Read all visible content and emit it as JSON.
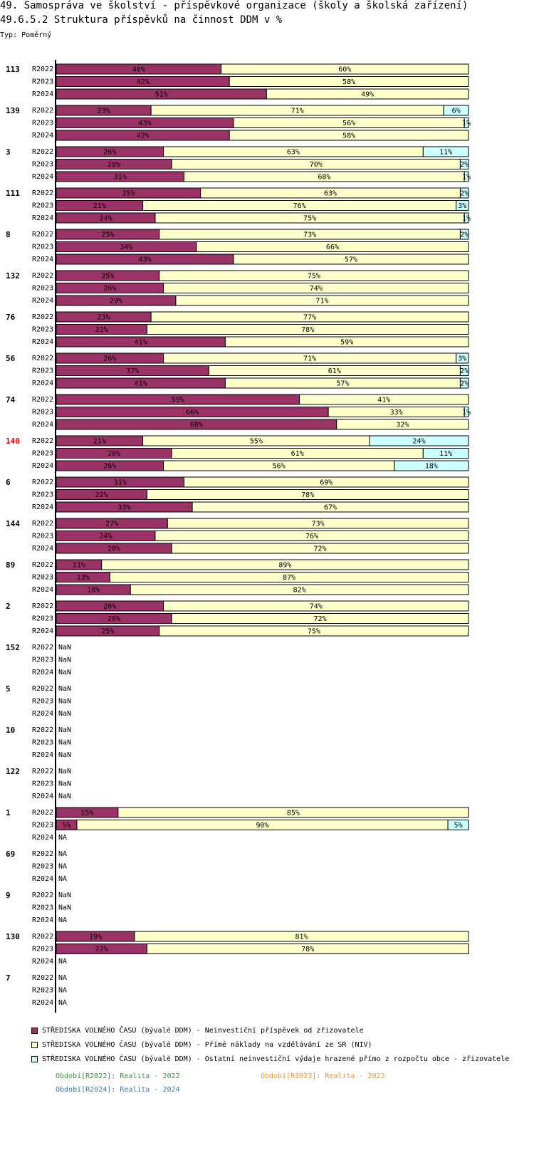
{
  "header": {
    "title_line1": "49. Samospráva ve školství - příspěvkové organizace (školy a školská zařízení)",
    "title_line2": "49.6.5.2 Struktura příspěvků na činnost DDM v %",
    "type_label": "Typ: Poměrný"
  },
  "chart_data": {
    "type": "bar",
    "orientation": "horizontal-stacked-100",
    "title": "49.6.5.2 Struktura příspěvků na činnost DDM v %",
    "periods": [
      "R2022",
      "R2023",
      "R2024"
    ],
    "series": [
      {
        "name": "STŘEDISKA VOLNÉHO ČASU (bývalé DDM)  - Neinvestiční příspěvek od zřizovatele",
        "color": "#993366"
      },
      {
        "name": "STŘEDISKA VOLNÉHO ČASU (bývalé DDM)  - Přímé náklady na vzdělávání ze SR (NIV)",
        "color": "#ffffcc"
      },
      {
        "name": "STŘEDISKA VOLNÉHO ČASU (bývalé DDM)  - Ostatní neinvestiční výdaje hrazené přímo z rozpočtu obce - zřizovatele",
        "color": "#ccffff"
      }
    ],
    "groups": [
      {
        "id": "113",
        "highlight": false,
        "rows": [
          [
            40,
            60,
            0
          ],
          [
            42,
            58,
            0
          ],
          [
            51,
            49,
            0
          ]
        ]
      },
      {
        "id": "139",
        "highlight": false,
        "rows": [
          [
            23,
            71,
            6
          ],
          [
            43,
            56,
            1
          ],
          [
            42,
            58,
            0
          ]
        ]
      },
      {
        "id": "3",
        "highlight": false,
        "rows": [
          [
            26,
            63,
            11
          ],
          [
            28,
            70,
            2
          ],
          [
            31,
            68,
            1
          ]
        ]
      },
      {
        "id": "111",
        "highlight": false,
        "rows": [
          [
            35,
            63,
            2
          ],
          [
            21,
            76,
            3
          ],
          [
            24,
            75,
            1
          ]
        ]
      },
      {
        "id": "8",
        "highlight": false,
        "rows": [
          [
            25,
            73,
            2
          ],
          [
            34,
            66,
            0
          ],
          [
            43,
            57,
            0
          ]
        ]
      },
      {
        "id": "132",
        "highlight": false,
        "rows": [
          [
            25,
            75,
            0
          ],
          [
            26,
            74,
            0
          ],
          [
            29,
            71,
            0
          ]
        ]
      },
      {
        "id": "76",
        "highlight": false,
        "rows": [
          [
            23,
            77,
            0
          ],
          [
            22,
            78,
            0
          ],
          [
            41,
            59,
            0
          ]
        ]
      },
      {
        "id": "56",
        "highlight": false,
        "rows": [
          [
            26,
            71,
            3
          ],
          [
            37,
            61,
            2
          ],
          [
            41,
            57,
            2
          ]
        ]
      },
      {
        "id": "74",
        "highlight": false,
        "rows": [
          [
            59,
            41,
            0
          ],
          [
            66,
            33,
            1
          ],
          [
            68,
            32,
            0
          ]
        ]
      },
      {
        "id": "140",
        "highlight": true,
        "rows": [
          [
            21,
            55,
            24
          ],
          [
            28,
            61,
            11
          ],
          [
            26,
            56,
            18
          ]
        ]
      },
      {
        "id": "6",
        "highlight": false,
        "rows": [
          [
            31,
            69,
            0
          ],
          [
            22,
            78,
            0
          ],
          [
            33,
            67,
            0
          ]
        ]
      },
      {
        "id": "144",
        "highlight": false,
        "rows": [
          [
            27,
            73,
            0
          ],
          [
            24,
            76,
            0
          ],
          [
            28,
            72,
            0
          ]
        ]
      },
      {
        "id": "89",
        "highlight": false,
        "rows": [
          [
            11,
            89,
            0
          ],
          [
            13,
            87,
            0
          ],
          [
            18,
            82,
            0
          ]
        ]
      },
      {
        "id": "2",
        "highlight": false,
        "rows": [
          [
            26,
            74,
            0
          ],
          [
            28,
            72,
            0
          ],
          [
            25,
            75,
            0
          ]
        ]
      },
      {
        "id": "152",
        "highlight": false,
        "rows": [
          "NaN",
          "NaN",
          "NaN"
        ]
      },
      {
        "id": "5",
        "highlight": false,
        "rows": [
          "NaN",
          "NaN",
          "NaN"
        ]
      },
      {
        "id": "10",
        "highlight": false,
        "rows": [
          "NaN",
          "NaN",
          "NaN"
        ]
      },
      {
        "id": "122",
        "highlight": false,
        "rows": [
          "NaN",
          "NaN",
          "NaN"
        ]
      },
      {
        "id": "1",
        "highlight": false,
        "rows": [
          [
            15,
            85,
            0
          ],
          [
            5,
            90,
            5
          ],
          "NA"
        ]
      },
      {
        "id": "69",
        "highlight": false,
        "rows": [
          "NA",
          "NA",
          "NA"
        ]
      },
      {
        "id": "9",
        "highlight": false,
        "rows": [
          "NaN",
          "NaN",
          "NA"
        ]
      },
      {
        "id": "130",
        "highlight": false,
        "rows": [
          [
            19,
            81,
            0
          ],
          [
            22,
            78,
            0
          ],
          "NA"
        ]
      },
      {
        "id": "7",
        "highlight": false,
        "rows": [
          "NA",
          "NA",
          "NA"
        ]
      }
    ]
  },
  "legend": {
    "items": [
      {
        "label": "STŘEDISKA VOLNÉHO ČASU (bývalé DDM)  - Neinvestiční příspěvek od zřizovatele",
        "color": "#993366"
      },
      {
        "label": "STŘEDISKA VOLNÉHO ČASU (bývalé DDM)  - Přímé náklady na vzdělávání ze SR (NIV)",
        "color": "#ffffcc"
      },
      {
        "label": "STŘEDISKA VOLNÉHO ČASU (bývalé DDM)  - Ostatní neinvestiční výdaje hrazené přímo z rozpočtu obce - zřizovatele",
        "color": "#ccffff"
      }
    ],
    "periods": [
      {
        "label": "Období[R2022]: Realita - 2022",
        "color": "#339933"
      },
      {
        "label": "Období[R2023]: Realita - 2023",
        "color": "#ff8c1a"
      },
      {
        "label": "Období[R2024]: Realita - 2024",
        "color": "#3377aa"
      }
    ]
  },
  "colors": {
    "highlight_label": "#ff0000",
    "axis": "#000000"
  }
}
